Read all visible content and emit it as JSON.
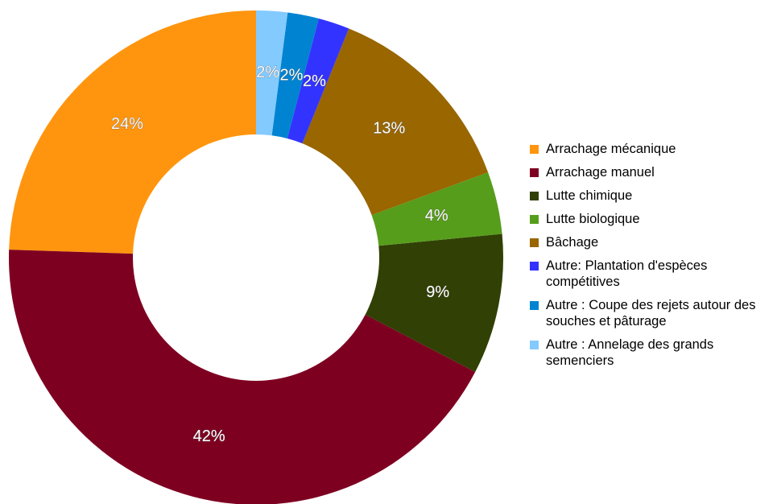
{
  "chart_data": {
    "type": "donut",
    "categories": [
      "Arrachage mécanique",
      "Arrachage manuel",
      "Lutte chimique",
      "Lutte biologique",
      "Bâchage",
      "Autre: Plantation d'espèces compétitives",
      "Autre : Coupe des rejets autour des souches et pâturage",
      "Autre : Annelage des grands semenciers"
    ],
    "values": [
      24,
      42,
      9,
      4,
      13,
      2,
      2,
      2
    ],
    "value_labels": [
      "24%",
      "42%",
      "9%",
      "4%",
      "13%",
      "2%",
      "2%",
      "2%"
    ],
    "colors": [
      "#ff950e",
      "#7e0021",
      "#314004",
      "#579d1c",
      "#996600",
      "#3333ff",
      "#0084d1",
      "#83caff"
    ],
    "legend": "right"
  }
}
